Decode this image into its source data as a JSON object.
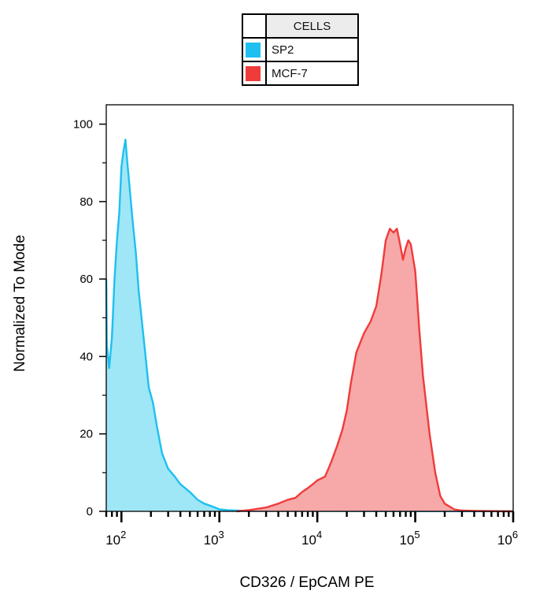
{
  "legend": {
    "header": "CELLS",
    "entries": [
      {
        "label": "SP2",
        "color": "#1ec0ef"
      },
      {
        "label": "MCF-7",
        "color": "#f03b3b"
      }
    ]
  },
  "chart_data": {
    "type": "area",
    "title": "",
    "xlabel": "CD326 / EpCAM  PE",
    "ylabel": "Normalized To Mode",
    "x_scale": "log",
    "xlim": [
      70,
      1000000
    ],
    "ylim": [
      0,
      105
    ],
    "y_ticks": [
      0,
      20,
      40,
      60,
      80,
      100
    ],
    "x_tick_labels": [
      {
        "base": "10",
        "exp": "2",
        "value": 100
      },
      {
        "base": "10",
        "exp": "3",
        "value": 1000
      },
      {
        "base": "10",
        "exp": "4",
        "value": 10000
      },
      {
        "base": "10",
        "exp": "5",
        "value": 100000
      },
      {
        "base": "10",
        "exp": "6",
        "value": 1000000
      }
    ],
    "grid": false,
    "legend_position": "top-center",
    "series": [
      {
        "name": "SP2",
        "line_color": "#1ec0ef",
        "fill_color": "#9fe6f7",
        "x": [
          70,
          71,
          75,
          80,
          85,
          90,
          95,
          100,
          105,
          110,
          115,
          120,
          125,
          130,
          140,
          150,
          170,
          190,
          210,
          230,
          260,
          300,
          350,
          400,
          500,
          600,
          700,
          800,
          900,
          1000,
          1200,
          1500,
          2000,
          1000000
        ],
        "y": [
          60,
          43,
          37,
          45,
          60,
          70,
          77,
          89,
          93,
          96,
          90,
          85,
          80,
          75,
          67,
          57,
          44,
          32,
          28,
          22,
          15,
          11,
          9,
          7,
          5,
          3,
          2,
          1.5,
          1,
          0.5,
          0.3,
          0.2,
          0.1,
          0
        ]
      },
      {
        "name": "MCF-7",
        "line_color": "#f03b3b",
        "fill_color": "#f7a8a8",
        "x": [
          1500,
          2000,
          3000,
          4000,
          5000,
          6000,
          7000,
          8000,
          9000,
          10000,
          11000,
          12000,
          13000,
          14000,
          16000,
          18000,
          20000,
          22000,
          25000,
          30000,
          35000,
          40000,
          45000,
          50000,
          55000,
          60000,
          65000,
          70000,
          75000,
          80000,
          85000,
          90000,
          100000,
          110000,
          120000,
          140000,
          160000,
          180000,
          200000,
          250000,
          300000,
          400000,
          1000000
        ],
        "y": [
          0,
          0.3,
          1,
          2,
          3,
          3.5,
          5,
          6,
          7,
          8,
          8.5,
          9,
          11,
          13,
          17,
          21,
          26,
          33,
          41,
          46,
          49,
          53,
          61,
          70,
          73,
          72,
          73,
          69,
          65,
          68,
          70,
          69,
          62,
          47,
          35,
          20,
          10,
          4,
          2,
          0.5,
          0.2,
          0.1,
          0
        ]
      }
    ]
  }
}
